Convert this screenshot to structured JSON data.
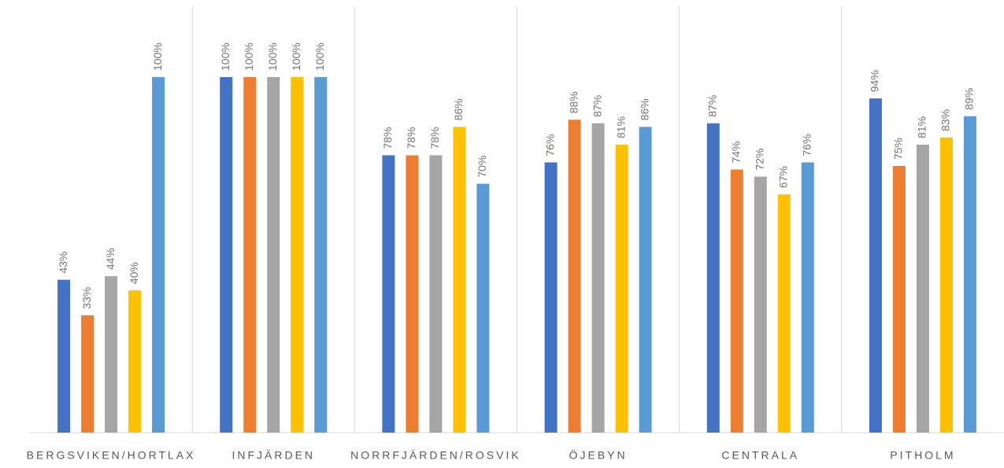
{
  "chart_data": {
    "type": "bar",
    "categories": [
      "BERGSVIKEN/HORTLAX",
      "INFJÄRDEN",
      "NORRFJÄRDEN/ROSVIK",
      "ÖJEBYN",
      "CENTRALA",
      "PITHOLM"
    ],
    "ylim": [
      0,
      100
    ],
    "series": [
      {
        "color": "#4472c4",
        "values": [
          43,
          100,
          78,
          76,
          87,
          94
        ],
        "value_labels": [
          "43%",
          "100%",
          "78%",
          "76%",
          "87%",
          "94%"
        ]
      },
      {
        "color": "#ed7d31",
        "values": [
          33,
          100,
          78,
          88,
          74,
          75
        ],
        "value_labels": [
          "33%",
          "100%",
          "78%",
          "88%",
          "74%",
          "75%"
        ]
      },
      {
        "color": "#a5a5a5",
        "values": [
          44,
          100,
          78,
          87,
          72,
          81
        ],
        "value_labels": [
          "44%",
          "100%",
          "78%",
          "87%",
          "72%",
          "81%"
        ]
      },
      {
        "color": "#ffc000",
        "values": [
          40,
          100,
          86,
          81,
          67,
          83
        ],
        "value_labels": [
          "40%",
          "100%",
          "86%",
          "81%",
          "67%",
          "83%"
        ]
      },
      {
        "color": "#5b9bd5",
        "values": [
          100,
          100,
          70,
          86,
          76,
          89
        ],
        "value_labels": [
          "100%",
          "100%",
          "70%",
          "86%",
          "76%",
          "89%"
        ]
      }
    ]
  }
}
